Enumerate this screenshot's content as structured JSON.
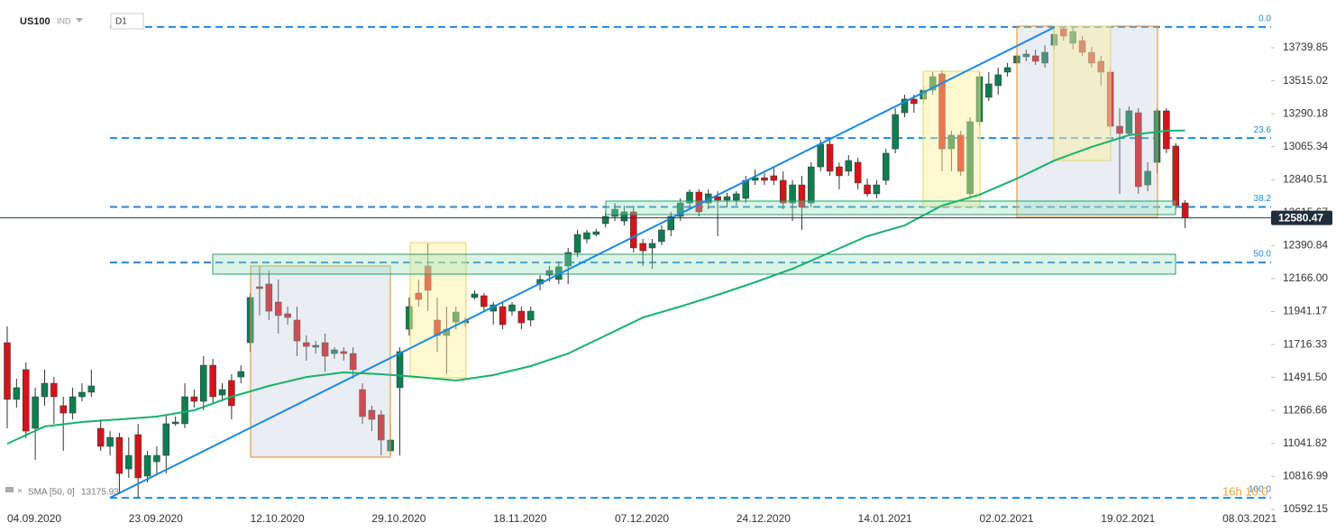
{
  "header": {
    "symbol": "US100",
    "market": "IND",
    "interval": "D1"
  },
  "timer": "16h 10:0",
  "chart_data": {
    "type": "candlestick",
    "categories": [
      "04.09.2020",
      null,
      null,
      null,
      null,
      null,
      null,
      null,
      null,
      null,
      null,
      null,
      null,
      "23.09.2020",
      null,
      null,
      null,
      null,
      null,
      null,
      null,
      null,
      null,
      null,
      null,
      null,
      "12.10.2020",
      null,
      null,
      null,
      null,
      null,
      null,
      null,
      null,
      null,
      null,
      null,
      null,
      "29.10.2020",
      null,
      null,
      null,
      null,
      null,
      null,
      null,
      null,
      null,
      null,
      null,
      null,
      "18.11.2020",
      null,
      null,
      null,
      null,
      null,
      null,
      null,
      null,
      null,
      null,
      null,
      null,
      "07.12.2020",
      null,
      null,
      null,
      null,
      null,
      null,
      null,
      null,
      null,
      null,
      null,
      null,
      "24.12.2020",
      null,
      null,
      null,
      null,
      null,
      null,
      null,
      null,
      null,
      null,
      null,
      null,
      "14.01.2021",
      null,
      null,
      null,
      null,
      null,
      null,
      null,
      null,
      null,
      null,
      null,
      null,
      "02.02.2021",
      null,
      null,
      null,
      null,
      null,
      null,
      null,
      null,
      null,
      null,
      null,
      null,
      "19.02.2021",
      null,
      null,
      null,
      null,
      null,
      null,
      null,
      null,
      null,
      null,
      null,
      null,
      "08.03.2021"
    ],
    "open": [
      11729,
      11342,
      11545,
      11145,
      11360,
      11452,
      11299,
      11249,
      11360,
      11391,
      11145,
      11022,
      11083,
      10868,
      11102,
      10819,
      10917,
      10960,
      11176,
      11176,
      11360,
      11329,
      11575,
      11372,
      11471,
      11495,
      11729,
      12110,
      12129,
      12006,
      11926,
      11883,
      11729,
      11698,
      11729,
      11655,
      11668,
      11655,
      11409,
      11268,
      11237,
      10991,
      11422,
      11821,
      12067,
      12252,
      11883,
      11778,
      11870,
      11864,
      12037,
      12049,
      11944,
      11975,
      11944,
      11944,
      11883,
      12129,
      12190,
      12160,
      12252,
      12344,
      12436,
      12467,
      12541,
      12590,
      12559,
      12621,
      12406,
      12375,
      12418,
      12498,
      12590,
      12682,
      12756,
      12682,
      12725,
      12701,
      12701,
      12713,
      12836,
      12854,
      12867,
      12836,
      12682,
      12805,
      12682,
      12928,
      13082,
      12928,
      12898,
      12959,
      12805,
      12744,
      12836,
      13051,
      13297,
      13390,
      13390,
      13451,
      13562,
      13051,
      13144,
      12744,
      13236,
      13402,
      13482,
      13574,
      13636,
      13679,
      13685,
      13636,
      13758,
      13869,
      13771,
      13789,
      13709,
      13648,
      13574,
      13205,
      13156,
      13297,
      12805,
      12959,
      13310,
      13070,
      12682,
      null,
      null,
      null,
      null
    ],
    "high": [
      11840,
      11483,
      11594,
      11422,
      11545,
      11495,
      11360,
      11422,
      11452,
      11545,
      11206,
      11126,
      11114,
      11083,
      11176,
      10991,
      11022,
      11237,
      11225,
      11452,
      11409,
      11637,
      11618,
      11452,
      11514,
      11575,
      12067,
      12252,
      12221,
      12160,
      11975,
      11975,
      11778,
      11741,
      11791,
      11698,
      11698,
      11698,
      11452,
      11299,
      11268,
      11176,
      11698,
      12037,
      12160,
      12406,
      12037,
      11975,
      11975,
      11901,
      12086,
      12067,
      12006,
      12006,
      12006,
      11975,
      11975,
      12190,
      12252,
      12283,
      12375,
      12498,
      12498,
      12504,
      12621,
      12682,
      12664,
      12664,
      12436,
      12436,
      12529,
      12621,
      12713,
      12775,
      12775,
      12775,
      12762,
      12750,
      12762,
      12867,
      12910,
      12885,
      12928,
      12898,
      12836,
      12867,
      12959,
      13113,
      13113,
      12959,
      13008,
      12990,
      12848,
      12836,
      13051,
      13328,
      13420,
      13420,
      13482,
      13574,
      13586,
      13174,
      13174,
      13267,
      13574,
      13574,
      13605,
      13636,
      13709,
      13728,
      13728,
      13758,
      13869,
      13882,
      13882,
      13820,
      13746,
      13685,
      13605,
      13328,
      13340,
      13328,
      12959,
      13328,
      13328,
      13090,
      12701,
      null,
      null,
      null,
      null
    ],
    "low": [
      11145,
      11286,
      11077,
      10930,
      11299,
      11176,
      10991,
      11206,
      11329,
      11360,
      10991,
      10960,
      10696,
      10807,
      10671,
      10776,
      10837,
      10837,
      11163,
      11145,
      11286,
      11268,
      11311,
      11329,
      11206,
      11452,
      11668,
      11914,
      11883,
      11791,
      11852,
      11637,
      11606,
      11655,
      11532,
      11618,
      11606,
      11483,
      11176,
      11126,
      10960,
      10960,
      10960,
      11778,
      11975,
      11944,
      11668,
      11514,
      11821,
      11840,
      12024,
      11944,
      11852,
      11821,
      11914,
      11821,
      11840,
      12086,
      12147,
      12129,
      12129,
      12313,
      12406,
      12455,
      12516,
      12559,
      12529,
      12344,
      12252,
      12233,
      12393,
      12455,
      12559,
      12639,
      12590,
      12639,
      12455,
      12652,
      12664,
      12682,
      12805,
      12805,
      12805,
      12639,
      12559,
      12498,
      12652,
      12898,
      12867,
      12775,
      12867,
      12775,
      12725,
      12713,
      12805,
      13021,
      13267,
      13297,
      13359,
      13420,
      12898,
      12898,
      12867,
      12713,
      13205,
      13377,
      13420,
      13543,
      13605,
      13648,
      13623,
      13605,
      13728,
      13789,
      13728,
      13685,
      13605,
      13482,
      13144,
      12744,
      13144,
      12744,
      12762,
      12885,
      13021,
      12639,
      12510,
      null,
      null,
      null,
      null
    ],
    "close": [
      11342,
      11422,
      11126,
      11360,
      11452,
      11360,
      11249,
      11360,
      11391,
      11434,
      11022,
      11083,
      10837,
      10960,
      10807,
      10960,
      10960,
      11176,
      11188,
      11360,
      11329,
      11575,
      11360,
      11409,
      11299,
      11532,
      12037,
      12098,
      11944,
      11914,
      11901,
      11741,
      11704,
      11711,
      11637,
      11680,
      11655,
      11545,
      11225,
      11206,
      11065,
      11065,
      11668,
      11975,
      12024,
      12086,
      11778,
      11821,
      11938,
      11877,
      12061,
      11975,
      11987,
      11852,
      11987,
      11864,
      11944,
      12160,
      12221,
      12246,
      12344,
      12467,
      12479,
      12485,
      12590,
      12639,
      12621,
      12375,
      12356,
      12406,
      12498,
      12590,
      12682,
      12756,
      12621,
      12744,
      12701,
      12725,
      12744,
      12836,
      12854,
      12836,
      12836,
      12682,
      12805,
      12652,
      12928,
      13082,
      12898,
      12867,
      12971,
      12818,
      12744,
      12805,
      13021,
      13285,
      13390,
      13359,
      13451,
      13543,
      13051,
      13144,
      12898,
      13236,
      13543,
      13494,
      13556,
      13605,
      13685,
      13697,
      13648,
      13709,
      13832,
      13820,
      13851,
      13709,
      13636,
      13574,
      13205,
      13156,
      13310,
      12793,
      12898,
      13310,
      13051,
      12664,
      12580.47,
      null,
      null,
      null,
      null
    ],
    "up_color": "#0f7d4f",
    "down_color": "#d0161b",
    "sma": {
      "name": "SMA [50, 0]",
      "color": "#18b26b",
      "x": [
        0,
        4,
        8,
        12,
        16,
        20,
        24,
        28,
        32,
        36,
        40,
        44,
        48,
        52,
        56,
        60,
        64,
        68,
        72,
        76,
        80,
        84,
        88,
        92,
        96,
        100,
        104,
        108,
        112,
        116,
        120,
        124,
        126
      ],
      "values": [
        11040,
        11157,
        11188,
        11206,
        11225,
        11268,
        11360,
        11434,
        11495,
        11526,
        11514,
        11495,
        11471,
        11508,
        11569,
        11655,
        11778,
        11901,
        11975,
        12055,
        12141,
        12233,
        12344,
        12455,
        12529,
        12664,
        12738,
        12848,
        12971,
        13064,
        13144,
        13174,
        13175.93
      ]
    },
    "fib_levels": [
      {
        "label": "0.0",
        "price": 13882
      },
      {
        "label": "23.6",
        "price": 13124
      },
      {
        "label": "38.2",
        "price": 12655
      },
      {
        "label": "50.0",
        "price": 12276
      },
      {
        "label": "100.0",
        "price": 10671
      }
    ],
    "fib_color": "#1e88e5",
    "ylim": [
      10573,
      14066
    ],
    "yticks": [
      13739.85,
      13515.02,
      13290.18,
      13065.34,
      12840.51,
      12615.67,
      12390.84,
      {
        "value": 12166,
        "label": "12166.00"
      },
      11941.17,
      11716.33,
      {
        "value": 11491.5,
        "label": "11491.50"
      },
      11266.66,
      11041.82,
      10816.99,
      10592.15
    ]
  }
}
